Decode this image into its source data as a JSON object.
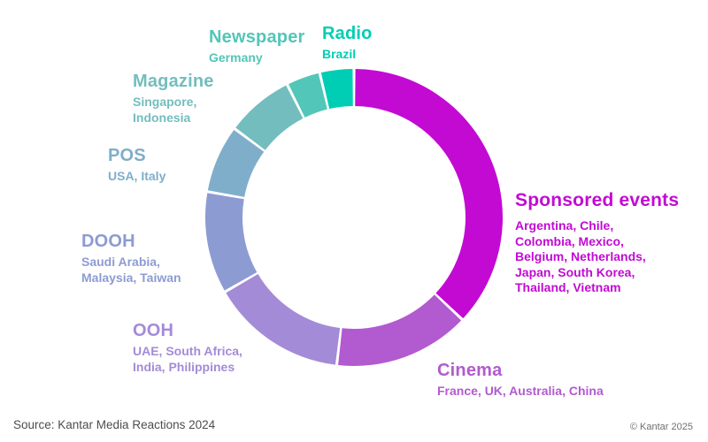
{
  "chart_data": {
    "type": "donut",
    "title": "",
    "direction": "clockwise",
    "start_angle_deg": 0,
    "inner_radius_ratio": 0.75,
    "total_countries": 27,
    "segments": [
      {
        "label": "Sponsored events",
        "countries": "Argentina, Chile,\nColombia, Mexico,\nBelgium, Netherlands,\nJapan, South Korea,\nThailand, Vietnam",
        "country_count": 10,
        "color": "#C20AD3"
      },
      {
        "label": "Cinema",
        "countries": "France, UK, Australia, China",
        "country_count": 4,
        "color": "#B25ACF"
      },
      {
        "label": "OOH",
        "countries": "UAE, South Africa,\nIndia, Philippines",
        "country_count": 4,
        "color": "#A48BD7"
      },
      {
        "label": "DOOH",
        "countries": "Saudi Arabia,\nMalaysia, Taiwan",
        "country_count": 3,
        "color": "#8D9BD3"
      },
      {
        "label": "POS",
        "countries": "USA, Italy",
        "country_count": 2,
        "color": "#7FAECB"
      },
      {
        "label": "Magazine",
        "countries": "Singapore,\nIndonesia",
        "country_count": 2,
        "color": "#73BDBE"
      },
      {
        "label": "Newspaper",
        "countries": "Germany",
        "country_count": 1,
        "color": "#52C6B8"
      },
      {
        "label": "Radio",
        "countries": "Brazil",
        "country_count": 1,
        "color": "#00CEB4"
      }
    ]
  },
  "footer": {
    "source": "Source: Kantar Media Reactions 2024",
    "copyright": "© Kantar 2025"
  }
}
